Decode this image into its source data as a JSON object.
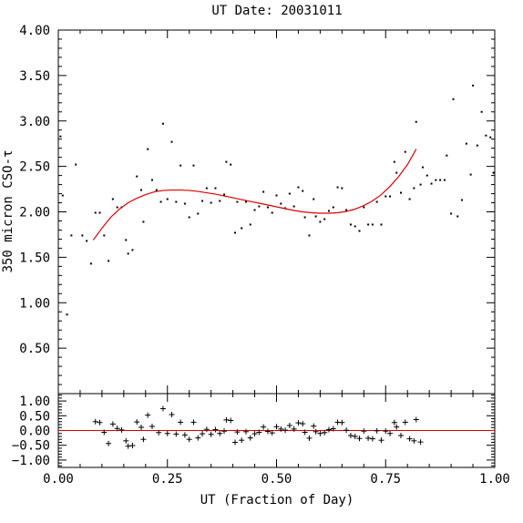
{
  "chart_data": [
    {
      "type": "scatter",
      "panel": "main",
      "title": "UT Date: 20031011",
      "ylabel": "350 micron CSO-τ",
      "xlim": [
        0.0,
        1.0
      ],
      "ylim": [
        0.0,
        4.0
      ],
      "yticks": [
        "0.50",
        "1.00",
        "1.50",
        "2.00",
        "2.50",
        "3.00",
        "3.50",
        "4.00"
      ],
      "series": [
        {
          "type": "scatter",
          "color": "#000000",
          "points": [
            [
              0.005,
              2.83
            ],
            [
              0.01,
              2.18
            ],
            [
              0.02,
              0.87
            ],
            [
              0.03,
              1.74
            ],
            [
              0.04,
              2.52
            ],
            [
              0.055,
              1.74
            ],
            [
              0.065,
              1.68
            ],
            [
              0.075,
              1.43
            ],
            [
              0.085,
              1.99
            ],
            [
              0.095,
              1.99
            ],
            [
              0.105,
              1.74
            ],
            [
              0.115,
              1.46
            ],
            [
              0.125,
              2.14
            ],
            [
              0.135,
              2.05
            ],
            [
              0.145,
              2.05
            ],
            [
              0.155,
              1.69
            ],
            [
              0.16,
              1.54
            ],
            [
              0.17,
              1.58
            ],
            [
              0.18,
              2.39
            ],
            [
              0.19,
              2.24
            ],
            [
              0.195,
              1.89
            ],
            [
              0.205,
              2.69
            ],
            [
              0.215,
              2.35
            ],
            [
              0.225,
              2.24
            ],
            [
              0.235,
              2.11
            ],
            [
              0.24,
              2.97
            ],
            [
              0.25,
              2.14
            ],
            [
              0.26,
              2.77
            ],
            [
              0.27,
              2.11
            ],
            [
              0.28,
              2.51
            ],
            [
              0.29,
              2.09
            ],
            [
              0.3,
              1.94
            ],
            [
              0.31,
              2.51
            ],
            [
              0.32,
              1.98
            ],
            [
              0.33,
              2.12
            ],
            [
              0.34,
              2.26
            ],
            [
              0.35,
              2.1
            ],
            [
              0.36,
              2.26
            ],
            [
              0.37,
              2.12
            ],
            [
              0.38,
              2.19
            ],
            [
              0.385,
              2.55
            ],
            [
              0.395,
              2.52
            ],
            [
              0.405,
              1.77
            ],
            [
              0.41,
              2.11
            ],
            [
              0.42,
              1.82
            ],
            [
              0.43,
              2.11
            ],
            [
              0.44,
              1.86
            ],
            [
              0.45,
              2.02
            ],
            [
              0.46,
              2.06
            ],
            [
              0.47,
              2.22
            ],
            [
              0.48,
              2.05
            ],
            [
              0.49,
              1.99
            ],
            [
              0.5,
              2.18
            ],
            [
              0.51,
              2.09
            ],
            [
              0.52,
              2.04
            ],
            [
              0.53,
              2.2
            ],
            [
              0.54,
              2.06
            ],
            [
              0.55,
              2.27
            ],
            [
              0.56,
              2.23
            ],
            [
              0.565,
              1.94
            ],
            [
              0.575,
              1.74
            ],
            [
              0.585,
              2.14
            ],
            [
              0.59,
              1.95
            ],
            [
              0.6,
              1.89
            ],
            [
              0.61,
              1.92
            ],
            [
              0.62,
              2.01
            ],
            [
              0.63,
              2.05
            ],
            [
              0.64,
              2.27
            ],
            [
              0.65,
              2.26
            ],
            [
              0.66,
              2.02
            ],
            [
              0.67,
              1.86
            ],
            [
              0.68,
              1.84
            ],
            [
              0.69,
              1.79
            ],
            [
              0.7,
              2.05
            ],
            [
              0.71,
              1.86
            ],
            [
              0.72,
              1.86
            ],
            [
              0.73,
              2.11
            ],
            [
              0.74,
              1.86
            ],
            [
              0.75,
              2.17
            ],
            [
              0.76,
              2.17
            ],
            [
              0.77,
              2.55
            ],
            [
              0.775,
              2.43
            ],
            [
              0.785,
              2.21
            ],
            [
              0.795,
              2.66
            ],
            [
              0.805,
              2.14
            ],
            [
              0.815,
              2.26
            ],
            [
              0.82,
              2.99
            ],
            [
              0.83,
              2.3
            ],
            [
              0.835,
              2.49
            ],
            [
              0.845,
              2.4
            ],
            [
              0.855,
              2.31
            ],
            [
              0.865,
              2.35
            ],
            [
              0.875,
              2.35
            ],
            [
              0.885,
              2.35
            ],
            [
              0.89,
              2.62
            ],
            [
              0.9,
              1.98
            ],
            [
              0.905,
              3.24
            ],
            [
              0.915,
              1.95
            ],
            [
              0.925,
              2.13
            ],
            [
              0.935,
              2.75
            ],
            [
              0.945,
              2.41
            ],
            [
              0.95,
              3.39
            ],
            [
              0.96,
              2.73
            ],
            [
              0.97,
              3.1
            ],
            [
              0.98,
              2.84
            ],
            [
              0.99,
              2.82
            ],
            [
              0.997,
              2.43
            ]
          ]
        },
        {
          "type": "line",
          "color": "#e00000",
          "points": [
            [
              0.08,
              1.69
            ],
            [
              0.1,
              1.82
            ],
            [
              0.12,
              1.94
            ],
            [
              0.14,
              2.03
            ],
            [
              0.16,
              2.1
            ],
            [
              0.18,
              2.15
            ],
            [
              0.2,
              2.19
            ],
            [
              0.22,
              2.22
            ],
            [
              0.24,
              2.235
            ],
            [
              0.26,
              2.24
            ],
            [
              0.28,
              2.24
            ],
            [
              0.3,
              2.235
            ],
            [
              0.32,
              2.225
            ],
            [
              0.34,
              2.21
            ],
            [
              0.36,
              2.195
            ],
            [
              0.38,
              2.175
            ],
            [
              0.4,
              2.155
            ],
            [
              0.42,
              2.135
            ],
            [
              0.44,
              2.115
            ],
            [
              0.46,
              2.095
            ],
            [
              0.48,
              2.075
            ],
            [
              0.5,
              2.055
            ],
            [
              0.52,
              2.035
            ],
            [
              0.54,
              2.015
            ],
            [
              0.56,
              2.0
            ],
            [
              0.58,
              1.99
            ],
            [
              0.6,
              1.985
            ],
            [
              0.62,
              1.985
            ],
            [
              0.64,
              1.99
            ],
            [
              0.66,
              2.005
            ],
            [
              0.68,
              2.03
            ],
            [
              0.7,
              2.07
            ],
            [
              0.72,
              2.12
            ],
            [
              0.74,
              2.19
            ],
            [
              0.76,
              2.28
            ],
            [
              0.78,
              2.39
            ],
            [
              0.8,
              2.52
            ],
            [
              0.82,
              2.69
            ]
          ]
        }
      ]
    },
    {
      "type": "scatter",
      "panel": "residuals",
      "xlabel": "UT (Fraction of Day)",
      "xlim": [
        0.0,
        1.0
      ],
      "ylim": [
        -1.25,
        1.25
      ],
      "xticks": [
        "0.00",
        "0.25",
        "0.50",
        "0.75",
        "1.00"
      ],
      "yticks": [
        "−1.00",
        "−0.50",
        "0.00",
        "0.50",
        "1.00"
      ],
      "series": [
        {
          "type": "scatter",
          "marker": "+",
          "color": "#000000",
          "points": [
            [
              0.085,
              0.3
            ],
            [
              0.095,
              0.27
            ],
            [
              0.105,
              -0.06
            ],
            [
              0.115,
              -0.44
            ],
            [
              0.125,
              0.22
            ],
            [
              0.135,
              0.07
            ],
            [
              0.145,
              0.02
            ],
            [
              0.155,
              -0.35
            ],
            [
              0.16,
              -0.53
            ],
            [
              0.17,
              -0.51
            ],
            [
              0.18,
              0.29
            ],
            [
              0.19,
              0.11
            ],
            [
              0.195,
              -0.3
            ],
            [
              0.205,
              0.52
            ],
            [
              0.215,
              0.14
            ],
            [
              0.23,
              -0.07
            ],
            [
              0.24,
              0.74
            ],
            [
              0.25,
              -0.1
            ],
            [
              0.26,
              0.54
            ],
            [
              0.27,
              -0.12
            ],
            [
              0.28,
              0.28
            ],
            [
              0.29,
              -0.15
            ],
            [
              0.3,
              -0.3
            ],
            [
              0.31,
              0.28
            ],
            [
              0.32,
              -0.25
            ],
            [
              0.33,
              -0.11
            ],
            [
              0.34,
              0.04
            ],
            [
              0.35,
              -0.13
            ],
            [
              0.36,
              0.03
            ],
            [
              0.37,
              -0.1
            ],
            [
              0.38,
              -0.02
            ],
            [
              0.385,
              0.36
            ],
            [
              0.395,
              0.34
            ],
            [
              0.405,
              -0.4
            ],
            [
              0.41,
              -0.05
            ],
            [
              0.42,
              -0.33
            ],
            [
              0.43,
              -0.04
            ],
            [
              0.44,
              -0.25
            ],
            [
              0.45,
              -0.11
            ],
            [
              0.46,
              -0.06
            ],
            [
              0.47,
              0.12
            ],
            [
              0.48,
              -0.03
            ],
            [
              0.49,
              -0.08
            ],
            [
              0.5,
              0.13
            ],
            [
              0.51,
              0.05
            ],
            [
              0.52,
              0.01
            ],
            [
              0.53,
              0.17
            ],
            [
              0.54,
              0.05
            ],
            [
              0.55,
              0.26
            ],
            [
              0.56,
              0.23
            ],
            [
              0.565,
              -0.06
            ],
            [
              0.575,
              -0.26
            ],
            [
              0.585,
              0.15
            ],
            [
              0.59,
              -0.04
            ],
            [
              0.6,
              -0.1
            ],
            [
              0.61,
              -0.07
            ],
            [
              0.62,
              0.03
            ],
            [
              0.63,
              0.06
            ],
            [
              0.64,
              0.28
            ],
            [
              0.65,
              0.27
            ],
            [
              0.66,
              0.01
            ],
            [
              0.67,
              -0.17
            ],
            [
              0.68,
              -0.2
            ],
            [
              0.69,
              -0.27
            ],
            [
              0.7,
              -0.02
            ],
            [
              0.71,
              -0.26
            ],
            [
              0.72,
              -0.28
            ],
            [
              0.73,
              -0.01
            ],
            [
              0.74,
              -0.33
            ],
            [
              0.75,
              -0.02
            ],
            [
              0.76,
              -0.1
            ],
            [
              0.77,
              0.27
            ],
            [
              0.775,
              0.12
            ],
            [
              0.785,
              -0.17
            ],
            [
              0.795,
              0.28
            ],
            [
              0.805,
              -0.28
            ],
            [
              0.815,
              -0.35
            ],
            [
              0.82,
              0.37
            ],
            [
              0.83,
              -0.39
            ]
          ]
        },
        {
          "type": "line",
          "color": "#e00000",
          "points": [
            [
              0.0,
              0.0
            ],
            [
              1.0,
              0.0
            ]
          ]
        }
      ]
    }
  ]
}
